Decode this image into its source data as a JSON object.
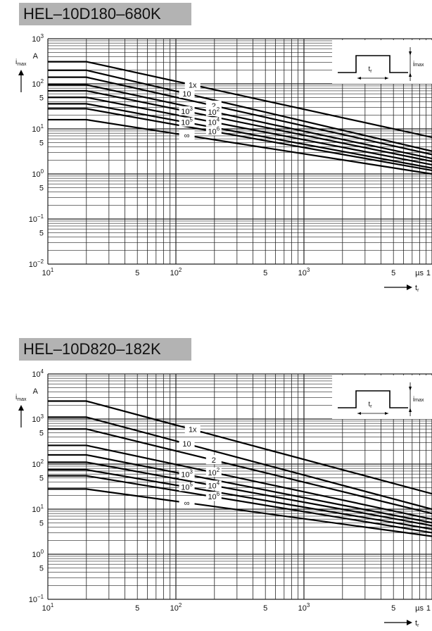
{
  "charts": [
    {
      "chart_data": {
        "type": "line",
        "title": "HEL–10D180–680K",
        "xscale": "log",
        "yscale": "log",
        "xlim": [
          10,
          10000
        ],
        "ylim": [
          0.01,
          1000
        ],
        "grid": true,
        "x_tick_labels": [
          {
            "value": 10,
            "label": "10¹"
          },
          {
            "value": 50,
            "label": "5"
          },
          {
            "value": 100,
            "label": "10²"
          },
          {
            "value": 500,
            "label": "5"
          },
          {
            "value": 1000,
            "label": "10³"
          },
          {
            "value": 5000,
            "label": "5"
          },
          {
            "value": 10000,
            "label": "1"
          }
        ],
        "x_unit": "µs",
        "xlabel": "t",
        "xlabel_sub": "r",
        "y_tick_labels": [
          {
            "value": 1000,
            "label": "10³"
          },
          {
            "value": 100,
            "label": "10²"
          },
          {
            "value": 50,
            "label": "5"
          },
          {
            "value": 10,
            "label": "10¹"
          },
          {
            "value": 5,
            "label": "5"
          },
          {
            "value": 1,
            "label": "10⁰"
          },
          {
            "value": 0.5,
            "label": "5"
          },
          {
            "value": 0.1,
            "label": "10⁻¹"
          },
          {
            "value": 0.05,
            "label": "5"
          },
          {
            "value": 0.01,
            "label": "10⁻²"
          }
        ],
        "y_unit": "A",
        "ylabel": "i",
        "ylabel_sub": "max",
        "series": [
          {
            "name": "1x",
            "x": [
              10,
              20,
              10000
            ],
            "y": [
              310,
              310,
              6.5
            ]
          },
          {
            "name": "10",
            "x": [
              10,
              20,
              10000
            ],
            "y": [
              200,
              200,
              3.2
            ]
          },
          {
            "name": "2",
            "x": [
              10,
              20,
              10000
            ],
            "y": [
              140,
              140,
              2.7
            ]
          },
          {
            "name": "10²",
            "x": [
              10,
              20,
              10000
            ],
            "y": [
              95,
              95,
              2.2
            ]
          },
          {
            "name": "10³",
            "x": [
              10,
              20,
              10000
            ],
            "y": [
              70,
              70,
              1.9
            ]
          },
          {
            "name": "10⁴",
            "x": [
              10,
              20,
              10000
            ],
            "y": [
              50,
              50,
              1.6
            ]
          },
          {
            "name": "10⁵",
            "x": [
              10,
              20,
              10000
            ],
            "y": [
              36,
              36,
              1.35
            ]
          },
          {
            "name": "10⁶",
            "x": [
              10,
              20,
              10000
            ],
            "y": [
              28,
              28,
              1.2
            ]
          },
          {
            "name": "∞",
            "x": [
              10,
              20,
              10000
            ],
            "y": [
              16,
              16,
              1.0
            ]
          }
        ],
        "inset": {
          "label_i": "i",
          "label_i_sub": "max",
          "label_t": "t",
          "label_t_sub": "r"
        }
      }
    },
    {
      "chart_data": {
        "type": "line",
        "title": "HEL–10D820–182K",
        "xscale": "log",
        "yscale": "log",
        "xlim": [
          10,
          10000
        ],
        "ylim": [
          0.1,
          10000
        ],
        "grid": true,
        "x_tick_labels": [
          {
            "value": 10,
            "label": "10¹"
          },
          {
            "value": 50,
            "label": "5"
          },
          {
            "value": 100,
            "label": "10²"
          },
          {
            "value": 500,
            "label": "5"
          },
          {
            "value": 1000,
            "label": "10³"
          },
          {
            "value": 5000,
            "label": "5"
          },
          {
            "value": 10000,
            "label": "1"
          }
        ],
        "x_unit": "µs",
        "xlabel": "t",
        "xlabel_sub": "r",
        "y_tick_labels": [
          {
            "value": 10000,
            "label": "10⁴"
          },
          {
            "value": 1000,
            "label": "10³"
          },
          {
            "value": 500,
            "label": "5"
          },
          {
            "value": 100,
            "label": "10²"
          },
          {
            "value": 50,
            "label": "5"
          },
          {
            "value": 10,
            "label": "10¹"
          },
          {
            "value": 5,
            "label": "5"
          },
          {
            "value": 1,
            "label": "10⁰"
          },
          {
            "value": 0.5,
            "label": "5"
          },
          {
            "value": 0.1,
            "label": "10⁻¹"
          }
        ],
        "y_unit": "A",
        "ylabel": "i",
        "ylabel_sub": "max",
        "series": [
          {
            "name": "1x",
            "x": [
              10,
              20,
              10000
            ],
            "y": [
              2500,
              2500,
              22
            ]
          },
          {
            "name": "10",
            "x": [
              10,
              20,
              10000
            ],
            "y": [
              1100,
              1100,
              10
            ]
          },
          {
            "name": "2",
            "x": [
              10,
              20,
              10000
            ],
            "y": [
              600,
              600,
              8
            ]
          },
          {
            "name": "10²",
            "x": [
              10,
              20,
              10000
            ],
            "y": [
              260,
              260,
              6
            ]
          },
          {
            "name": "10³",
            "x": [
              10,
              20,
              10000
            ],
            "y": [
              160,
              160,
              5
            ]
          },
          {
            "name": "10⁴",
            "x": [
              10,
              20,
              10000
            ],
            "y": [
              110,
              110,
              4.3
            ]
          },
          {
            "name": "10⁵",
            "x": [
              10,
              20,
              10000
            ],
            "y": [
              75,
              75,
              3.6
            ]
          },
          {
            "name": "10⁶",
            "x": [
              10,
              20,
              10000
            ],
            "y": [
              55,
              55,
              3.0
            ]
          },
          {
            "name": "∞",
            "x": [
              10,
              20,
              10000
            ],
            "y": [
              28,
              28,
              2.5
            ]
          }
        ],
        "inset": {
          "label_i": "i",
          "label_i_sub": "max",
          "label_t": "t",
          "label_t_sub": "r"
        }
      }
    }
  ]
}
